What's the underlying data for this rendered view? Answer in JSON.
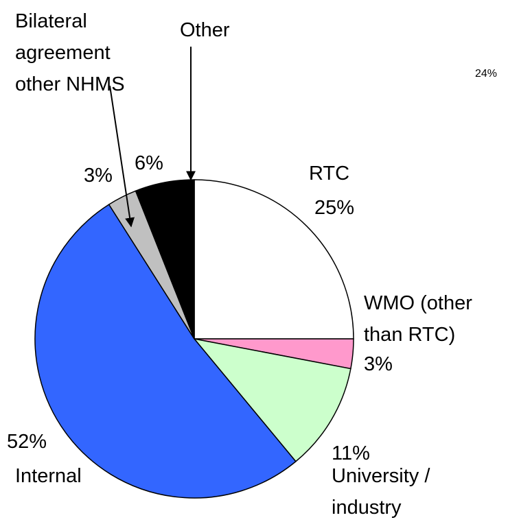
{
  "chart_data": {
    "type": "pie",
    "categories": [
      "RTC",
      "WMO (other than RTC)",
      "University / industry",
      "Internal",
      "Bilateral agreement other NHMS",
      "Other"
    ],
    "values": [
      25,
      3,
      11,
      52,
      3,
      6
    ],
    "value_labels": [
      "25%",
      "3%",
      "11%",
      "52%",
      "3%",
      "6%"
    ],
    "colors": [
      "#ffffff",
      "#ff99cc",
      "#ccffcc",
      "#3366ff",
      "#c0c0c0",
      "#000000"
    ],
    "annotations": [
      "24%"
    ]
  }
}
